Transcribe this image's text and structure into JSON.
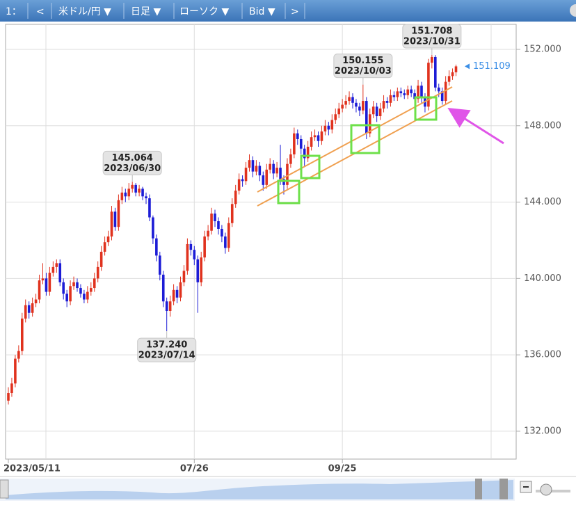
{
  "toolbar": {
    "items": [
      "1：",
      "<",
      "米ドル/円 ▼",
      "日足 ▼",
      "ローソク ▼",
      "Bid ▼",
      ">"
    ]
  },
  "chart_data": {
    "type": "candlestick",
    "categories": [
      "2023/05/11",
      null,
      null,
      null,
      null,
      null,
      null,
      null,
      null,
      null,
      null,
      null,
      null,
      null,
      null,
      null,
      null,
      null,
      null,
      null,
      null,
      null,
      null,
      null,
      null,
      null,
      null,
      null,
      null,
      null,
      null,
      null,
      null,
      null,
      null,
      null,
      null,
      null,
      null,
      null,
      null,
      null,
      null,
      null,
      null,
      null,
      null,
      null,
      null,
      null,
      null,
      null,
      null,
      null,
      "07/26",
      null,
      null,
      null,
      null,
      null,
      null,
      null,
      null,
      null,
      null,
      null,
      null,
      null,
      null,
      null,
      null,
      null,
      null,
      null,
      null,
      null,
      null,
      null,
      null,
      null,
      null,
      null,
      null,
      null,
      null,
      null,
      null,
      null,
      null,
      null,
      null,
      null,
      null,
      null,
      null,
      null,
      null,
      "09/25",
      null,
      null,
      null,
      null,
      null,
      null,
      null,
      null,
      null,
      null,
      null,
      null,
      null,
      null,
      null,
      null,
      null,
      null,
      null,
      null,
      null,
      null,
      null,
      null,
      null,
      null,
      null,
      null,
      null,
      null,
      null,
      null,
      null
    ],
    "open": [
      133.6,
      134.0,
      134.5,
      135.8,
      136.2,
      137.9,
      138.6,
      138.2,
      138.7,
      138.9,
      139.9,
      140.0,
      139.3,
      140.3,
      140.6,
      140.8,
      139.8,
      139.2,
      138.8,
      139.6,
      139.8,
      139.5,
      139.2,
      138.9,
      139.3,
      139.5,
      140.0,
      140.6,
      141.4,
      141.9,
      142.2,
      143.5,
      142.7,
      144.1,
      144.5,
      144.3,
      144.7,
      144.9,
      144.5,
      144.7,
      144.3,
      144.2,
      143.2,
      142.1,
      141.2,
      140.2,
      138.8,
      138.3,
      138.8,
      139.4,
      139.0,
      139.8,
      140.4,
      141.8,
      141.5,
      141.0,
      139.8,
      141.1,
      142.2,
      142.5,
      143.4,
      143.0,
      142.6,
      142.2,
      141.6,
      142.9,
      143.9,
      144.6,
      145.2,
      145.1,
      145.8,
      146.2,
      145.6,
      145.9,
      145.4,
      144.9,
      145.7,
      146.0,
      145.5,
      145.8,
      145.2,
      144.9,
      146.0,
      146.5,
      147.6,
      147.3,
      146.8,
      146.3,
      146.9,
      147.4,
      147.5,
      147.2,
      147.7,
      148.0,
      147.8,
      148.3,
      148.6,
      148.9,
      149.1,
      149.3,
      149.5,
      149.2,
      149.0,
      148.8,
      149.3,
      147.6,
      148.6,
      149.0,
      148.5,
      148.9,
      149.3,
      149.2,
      149.6,
      149.5,
      149.8,
      149.7,
      149.6,
      149.9,
      149.7,
      149.4,
      150.1,
      149.5,
      149.0,
      151.3,
      151.6,
      150.0,
      149.8,
      149.3,
      150.3,
      150.6,
      150.8
    ],
    "high": [
      134.3,
      134.8,
      136.0,
      136.5,
      138.2,
      138.9,
      138.8,
      139.0,
      139.2,
      140.2,
      140.8,
      140.3,
      140.6,
      140.9,
      141.0,
      141.0,
      140.0,
      139.4,
      139.9,
      140.1,
      140.0,
      139.7,
      139.4,
      139.6,
      139.8,
      140.3,
      140.9,
      141.7,
      142.2,
      142.5,
      143.8,
      143.7,
      144.4,
      144.8,
      144.7,
      145.0,
      145.064,
      145.0,
      144.9,
      144.8,
      144.5,
      144.4,
      143.3,
      142.3,
      141.4,
      140.4,
      139.0,
      139.1,
      139.7,
      139.6,
      140.1,
      140.7,
      142.1,
      142.0,
      141.7,
      141.2,
      141.4,
      142.5,
      142.8,
      143.7,
      143.6,
      143.2,
      142.8,
      142.4,
      143.2,
      144.2,
      144.9,
      145.5,
      145.4,
      146.1,
      146.5,
      146.4,
      146.2,
      146.1,
      145.6,
      146.0,
      146.3,
      146.2,
      146.1,
      147.0,
      145.4,
      146.3,
      146.8,
      147.9,
      147.8,
      147.5,
      147.0,
      147.2,
      147.7,
      147.8,
      147.7,
      148.0,
      148.3,
      148.2,
      148.6,
      148.9,
      149.2,
      149.4,
      149.6,
      149.8,
      149.7,
      149.4,
      149.2,
      150.155,
      149.5,
      148.9,
      149.3,
      149.2,
      149.2,
      149.6,
      149.5,
      149.9,
      149.8,
      150.0,
      150.0,
      149.9,
      150.1,
      150.1,
      149.9,
      150.4,
      150.3,
      149.7,
      151.5,
      151.708,
      151.7,
      150.2,
      150.0,
      150.6,
      150.9,
      151.0,
      151.2
    ],
    "low": [
      133.4,
      133.8,
      134.3,
      135.6,
      136.0,
      137.7,
      137.9,
      138.0,
      138.5,
      138.7,
      139.7,
      139.1,
      139.1,
      140.1,
      140.3,
      139.6,
      138.9,
      138.5,
      138.6,
      139.4,
      139.3,
      139.0,
      138.7,
      138.7,
      139.1,
      139.3,
      139.8,
      140.4,
      141.2,
      141.7,
      142.0,
      142.5,
      142.5,
      143.9,
      144.0,
      144.1,
      144.5,
      144.3,
      144.3,
      144.1,
      143.9,
      143.0,
      141.8,
      140.9,
      139.9,
      138.5,
      137.24,
      138.0,
      138.6,
      138.7,
      138.8,
      139.6,
      140.2,
      141.2,
      140.7,
      138.2,
      139.6,
      140.9,
      142.0,
      142.3,
      142.7,
      142.3,
      141.9,
      141.3,
      141.4,
      142.7,
      143.7,
      144.4,
      144.8,
      144.9,
      145.6,
      145.3,
      145.4,
      145.1,
      144.6,
      144.7,
      145.5,
      145.2,
      145.3,
      144.9,
      144.4,
      144.7,
      145.8,
      146.3,
      147.0,
      146.5,
      145.9,
      146.1,
      146.7,
      147.2,
      146.9,
      147.0,
      147.5,
      147.5,
      147.6,
      148.1,
      148.4,
      148.7,
      148.9,
      149.1,
      148.9,
      148.7,
      148.5,
      148.6,
      147.3,
      147.4,
      148.4,
      148.2,
      148.3,
      148.7,
      148.9,
      149.0,
      149.3,
      149.3,
      149.5,
      149.4,
      149.4,
      149.5,
      149.1,
      149.2,
      149.2,
      148.7,
      148.8,
      151.0,
      149.8,
      149.5,
      149.1,
      149.1,
      150.1,
      150.4,
      150.6
    ],
    "close": [
      134.0,
      134.5,
      135.8,
      136.2,
      137.9,
      138.6,
      138.2,
      138.7,
      138.9,
      139.9,
      140.0,
      139.3,
      140.3,
      140.6,
      140.8,
      139.8,
      139.2,
      138.8,
      139.6,
      139.8,
      139.5,
      139.2,
      138.9,
      139.3,
      139.5,
      140.0,
      140.6,
      141.4,
      141.9,
      142.2,
      143.5,
      142.7,
      144.1,
      144.5,
      144.3,
      144.7,
      144.9,
      144.5,
      144.7,
      144.3,
      144.2,
      143.2,
      142.1,
      141.2,
      140.2,
      138.8,
      138.3,
      138.8,
      139.4,
      139.0,
      139.8,
      140.4,
      141.8,
      141.5,
      141.0,
      139.8,
      141.1,
      142.2,
      142.5,
      143.4,
      143.0,
      142.6,
      142.2,
      141.6,
      142.9,
      143.9,
      144.6,
      145.2,
      145.1,
      145.8,
      146.2,
      145.6,
      145.9,
      145.4,
      144.9,
      145.7,
      146.0,
      145.5,
      145.8,
      145.2,
      144.9,
      146.0,
      146.5,
      147.6,
      147.3,
      146.8,
      146.3,
      146.9,
      147.4,
      147.5,
      147.2,
      147.7,
      148.0,
      147.8,
      148.3,
      148.6,
      148.9,
      149.1,
      149.3,
      149.5,
      149.2,
      149.0,
      148.8,
      149.3,
      147.6,
      148.6,
      149.0,
      148.5,
      148.9,
      149.3,
      149.2,
      149.6,
      149.5,
      149.8,
      149.7,
      149.6,
      149.9,
      149.7,
      149.4,
      150.1,
      149.5,
      149.0,
      151.3,
      151.6,
      150.0,
      149.8,
      149.3,
      150.3,
      150.6,
      150.8,
      151.109
    ],
    "up_color": "#e0321e",
    "down_color": "#1c1cd6",
    "ylim": [
      130.54,
      153.31
    ],
    "yticks": [
      {
        "value": 132,
        "label": "132.000"
      },
      {
        "value": 136,
        "label": "136.000"
      },
      {
        "value": 140,
        "label": "140.000"
      },
      {
        "value": 144,
        "label": "144.000"
      },
      {
        "value": 148,
        "label": "148.000"
      },
      {
        "value": 152,
        "label": "152.000"
      }
    ],
    "grid": true,
    "last_price": {
      "value": 151.109,
      "label": "151.109",
      "color": "#3a8ee6"
    },
    "annotations": [
      {
        "value": 145.064,
        "label": "145.064",
        "date": "2023/06/30",
        "side": "high"
      },
      {
        "value": 137.24,
        "label": "137.240",
        "date": "2023/07/14",
        "side": "low"
      },
      {
        "value": 150.155,
        "label": "150.155",
        "date": "2023/10/03",
        "side": "high"
      },
      {
        "value": 151.708,
        "label": "151.708",
        "date": "2023/10/31",
        "side": "high"
      }
    ]
  }
}
